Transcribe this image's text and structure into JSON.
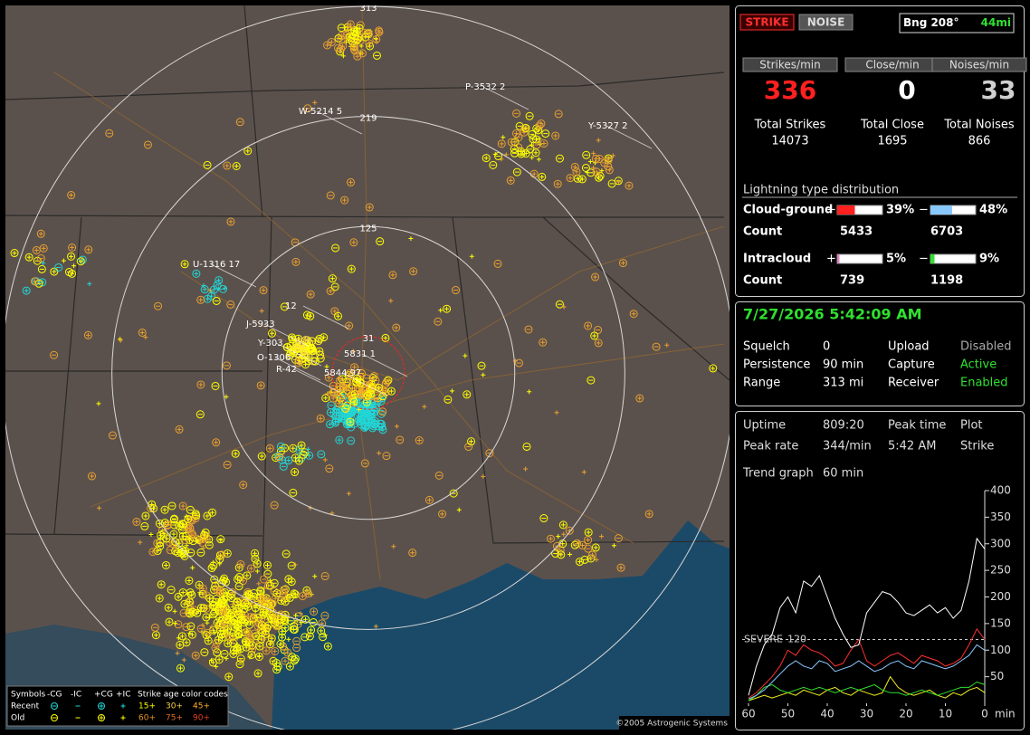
{
  "map": {
    "range_rings": [
      313,
      219,
      125,
      31
    ],
    "storm_cells": [
      "W-5214 5",
      "P-3532 2",
      "Y-5327 2",
      "U-1316 17",
      "J-5933",
      "Y-303",
      "O-1306",
      "R-42",
      "5831 1",
      "5844 97",
      "12"
    ],
    "legend": {
      "symbols_title": "Symbols",
      "symbols": [
        "-CG",
        "-IC",
        "+CG",
        "+IC"
      ],
      "age_title": "Strike age color codes",
      "rows": [
        "Recent",
        "Old"
      ],
      "ages_recent": [
        "15+",
        "30+",
        "45+"
      ],
      "ages_old": [
        "60+",
        "75+",
        "90+"
      ]
    },
    "copyright": "©2005 Astrogenic Systems"
  },
  "status": {
    "mode_buttons": [
      "STRIKE",
      "NOISE"
    ],
    "bearing": "Bng 208°",
    "distance": "44mi"
  },
  "rates": [
    {
      "label": "Strikes/min",
      "value": 336,
      "total_label": "Total Strikes",
      "total": 14073
    },
    {
      "label": "Close/min",
      "value": 0,
      "total_label": "Total Close",
      "total": 1695
    },
    {
      "label": "Noises/min",
      "value": 33,
      "total_label": "Total Noises",
      "total": 866
    }
  ],
  "distribution": {
    "title": "Lightning type distribution",
    "plus": "+",
    "minus": "−",
    "rows": [
      {
        "name": "Cloud-ground",
        "pos": {
          "value": 39,
          "label": "39%"
        },
        "neg": {
          "value": 48,
          "label": "48%"
        },
        "count_label": "Count",
        "pos_count": 5433,
        "neg_count": 6703
      },
      {
        "name": "Intracloud",
        "pos": {
          "value": 5,
          "label": "5%"
        },
        "neg": {
          "value": 9,
          "label": "9%"
        },
        "count_label": "Count",
        "pos_count": 739,
        "neg_count": 1198
      }
    ]
  },
  "settings": {
    "datetime": "7/27/2026 5:42:09 AM",
    "items": [
      [
        "Squelch",
        "0"
      ],
      [
        "Persistence",
        "90 min"
      ],
      [
        "Range",
        "313 mi"
      ]
    ],
    "flags": [
      [
        "Upload",
        "Disabled"
      ],
      [
        "Capture",
        "Active"
      ],
      [
        "Receiver",
        "Enabled"
      ]
    ]
  },
  "stats": {
    "items": [
      [
        "Uptime",
        "809:20"
      ],
      [
        "Peak rate",
        "344/min"
      ]
    ],
    "columns": [
      [
        "Peak time",
        "5:42 AM"
      ],
      [
        "Plot",
        "Strike"
      ]
    ],
    "trend_label": "Trend graph",
    "trend_span": "60 min"
  },
  "trend_graph": {
    "type": "line",
    "x_unit": "min",
    "x": [
      60,
      58,
      56,
      54,
      52,
      50,
      48,
      46,
      44,
      42,
      40,
      38,
      36,
      34,
      32,
      30,
      28,
      26,
      24,
      22,
      20,
      18,
      16,
      14,
      12,
      10,
      8,
      6,
      4,
      2,
      0
    ],
    "xlim": [
      60,
      0
    ],
    "xticks": [
      60,
      50,
      40,
      30,
      20,
      10,
      0
    ],
    "ylim": [
      0,
      400
    ],
    "yticks": [
      50,
      100,
      150,
      200,
      250,
      300,
      350,
      400
    ],
    "severe_label": "SEVERE",
    "severe_threshold": 120,
    "series": [
      {
        "color": "#ffffff",
        "values": [
          15,
          70,
          110,
          130,
          180,
          200,
          170,
          230,
          220,
          240,
          200,
          160,
          130,
          105,
          110,
          170,
          190,
          210,
          205,
          190,
          170,
          165,
          175,
          185,
          170,
          180,
          160,
          175,
          230,
          310,
          290
        ]
      },
      {
        "color": "#ff3030",
        "values": [
          10,
          20,
          35,
          50,
          70,
          100,
          90,
          110,
          100,
          95,
          85,
          70,
          75,
          100,
          120,
          80,
          70,
          80,
          90,
          95,
          85,
          75,
          90,
          85,
          80,
          70,
          75,
          85,
          110,
          140,
          120
        ]
      },
      {
        "color": "#88c8ff",
        "values": [
          8,
          15,
          25,
          40,
          55,
          70,
          80,
          70,
          65,
          80,
          75,
          60,
          65,
          70,
          80,
          70,
          60,
          65,
          75,
          80,
          70,
          65,
          80,
          75,
          70,
          65,
          70,
          80,
          90,
          110,
          100
        ]
      },
      {
        "color": "#30e030",
        "values": [
          5,
          15,
          30,
          35,
          25,
          20,
          25,
          30,
          25,
          30,
          25,
          20,
          25,
          30,
          25,
          30,
          35,
          25,
          20,
          20,
          15,
          20,
          25,
          20,
          15,
          20,
          25,
          30,
          30,
          40,
          35
        ]
      },
      {
        "color": "#f0f020",
        "values": [
          5,
          10,
          15,
          10,
          15,
          20,
          15,
          25,
          20,
          15,
          25,
          30,
          20,
          15,
          25,
          20,
          15,
          20,
          50,
          30,
          20,
          15,
          20,
          25,
          15,
          10,
          20,
          15,
          25,
          30,
          20
        ]
      }
    ]
  }
}
